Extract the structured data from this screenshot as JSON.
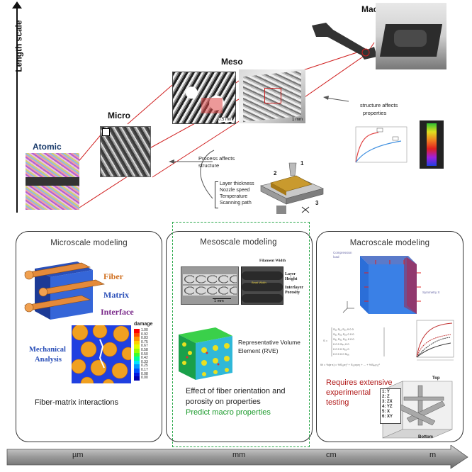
{
  "axis": {
    "y_label": "Length scale",
    "x_ticks": [
      "µm",
      "mm",
      "cm",
      "m"
    ]
  },
  "scales": {
    "atomic": "Atomic",
    "micro": "Micro",
    "meso": "Meso",
    "macro": "Macro"
  },
  "annotations": {
    "structure_affects": [
      "structure affects",
      "properties"
    ],
    "process_affects": [
      "Process affects",
      "structure"
    ],
    "params": [
      "Layer thickness",
      "Nozzle speed",
      "Temperature",
      "Scanning path"
    ],
    "printer_nums": [
      "1",
      "2",
      "3"
    ],
    "scale_bar_meso": "1 mm",
    "scale_bar_meso2": "0.5 mm"
  },
  "micro_panel": {
    "title": "Microscale modeling",
    "fiber": "Fiber",
    "matrix": "Matrix",
    "interface": "Interface",
    "mech": [
      "Mechanical",
      "Analysis"
    ],
    "damage": "damage",
    "scale_values": [
      "1.00",
      "0.92",
      "0.83",
      "0.75",
      "0.67",
      "0.58",
      "0.50",
      "0.42",
      "0.33",
      "0.25",
      "0.17",
      "0.08",
      "0.00"
    ],
    "scale_colors": [
      "#ff0000",
      "#ff4a00",
      "#ff9400",
      "#ffd000",
      "#e4ff00",
      "#9aff00",
      "#3dff2a",
      "#00ff9a",
      "#00e4ff",
      "#009aff",
      "#0050ff",
      "#0018e0",
      "#0000b0"
    ],
    "caption": "Fiber-matrix interactions"
  },
  "meso_panel": {
    "title": "Mesoscale modeling",
    "filament_width": "Filament Width",
    "layer_height": [
      "Layer",
      "Height"
    ],
    "interlayer": [
      "Interlayer",
      "Porosity"
    ],
    "bead_width": "Bead Width",
    "scale_bar": "1 mm",
    "rve": [
      "Representative Volume",
      "Element (RVE)"
    ],
    "effect": [
      "Effect of fiber orientation and",
      "porosity on properties"
    ],
    "predict": "Predict macro properties",
    "predict_color": "#1a9a2a"
  },
  "macro_panel": {
    "title": "Macroscale modeling",
    "compression": [
      "Compression",
      "load"
    ],
    "symmetry": "Symmetry X",
    "requires": [
      "Requires extensive",
      "experimental",
      "testing"
    ],
    "requires_color": "#b01818",
    "legend_items": [
      "1: Y",
      "2: Z",
      "3: ZX",
      "4: YZ",
      "5: X",
      "6: XY"
    ],
    "top": "Top",
    "bottom": "Bottom"
  }
}
